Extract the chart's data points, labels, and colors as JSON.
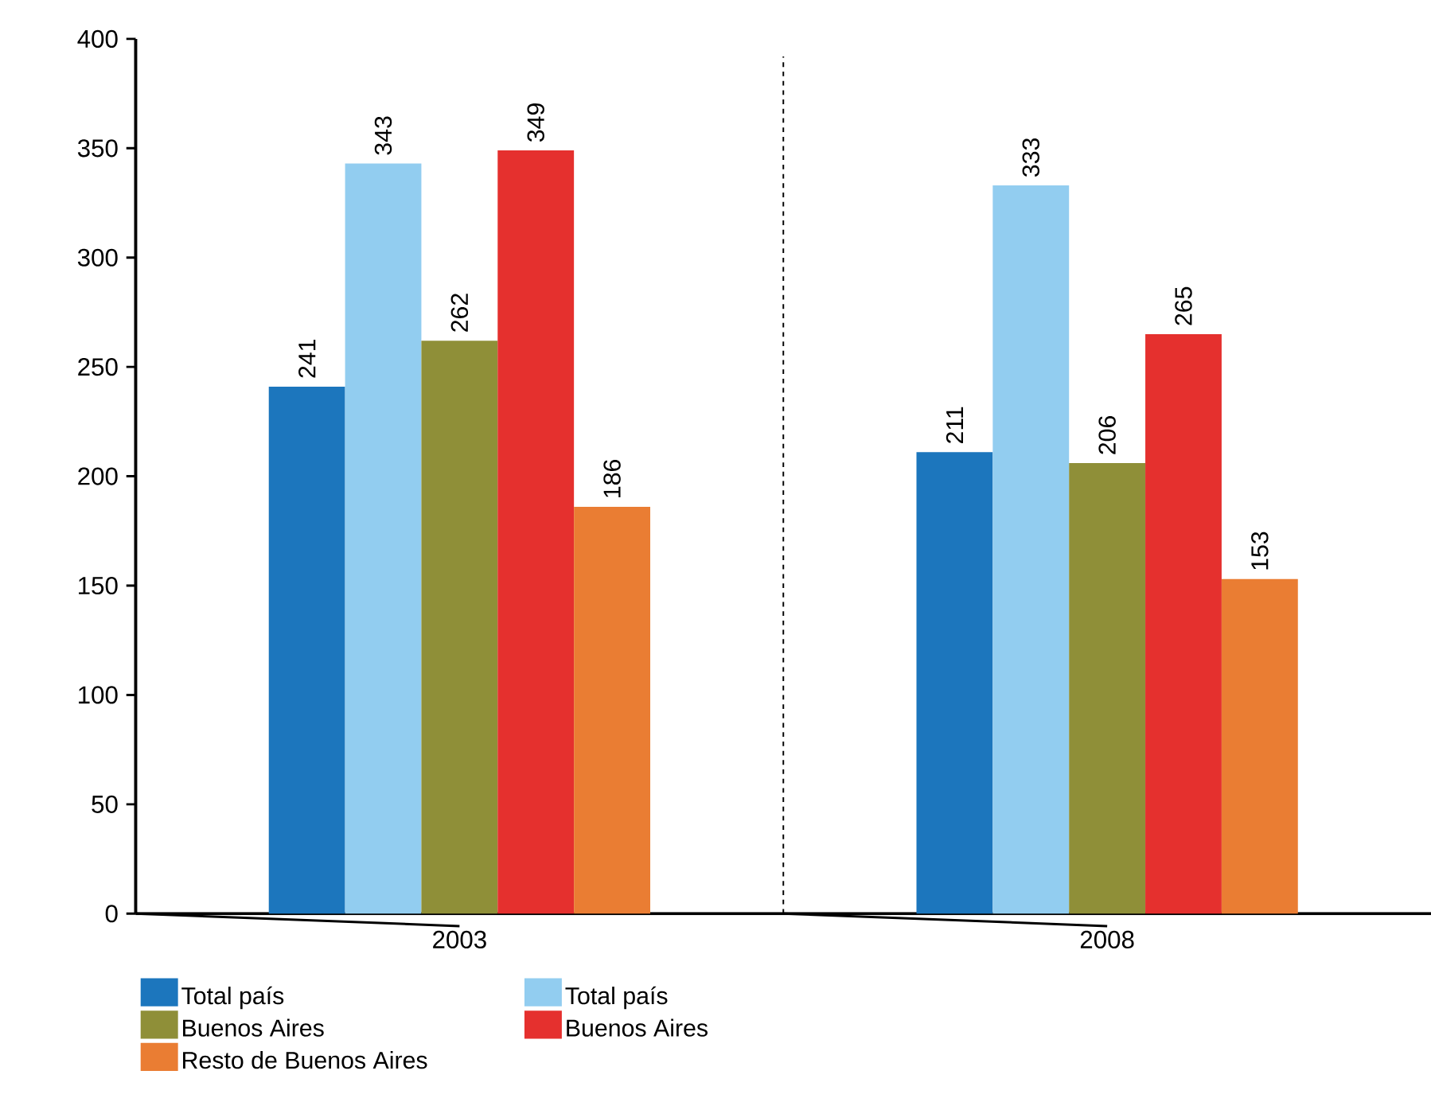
{
  "chart_data": {
    "type": "bar",
    "categories": [
      "2003",
      "2008"
    ],
    "series": [
      {
        "name": "Total país",
        "color": "#1c76bd",
        "values": [
          241,
          211
        ]
      },
      {
        "name": "Total país",
        "color": "#92cdf0",
        "values": [
          343,
          333
        ]
      },
      {
        "name": "Buenos Aires",
        "color": "#8f8f38",
        "values": [
          262,
          206
        ]
      },
      {
        "name": "Buenos Aires",
        "color": "#e5302e",
        "values": [
          349,
          265
        ]
      },
      {
        "name": "Resto de Buenos Aires",
        "color": "#ea7d33",
        "values": [
          186,
          153
        ]
      }
    ],
    "ylim": [
      0,
      400
    ],
    "yticks": [
      0,
      50,
      100,
      150,
      200,
      250,
      300,
      350,
      400
    ],
    "data_labels": true,
    "legend": "bottom",
    "grid": false
  }
}
